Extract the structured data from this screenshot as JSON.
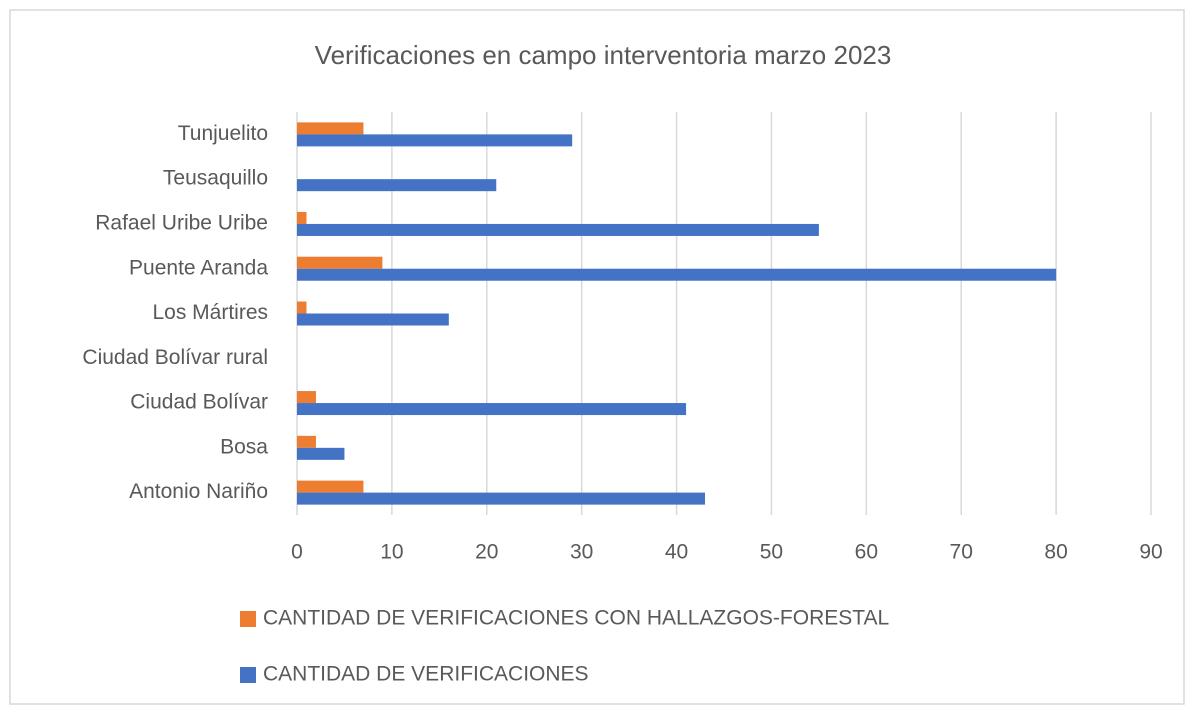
{
  "chart_data": {
    "type": "barh",
    "title": "Verificaciones en campo interventoria marzo 2023",
    "categories": [
      "Antonio Nariño",
      "Bosa",
      "Ciudad Bolívar",
      "Ciudad Bolívar rural",
      "Los Mártires",
      "Puente Aranda",
      "Rafael Uribe Uribe",
      "Teusaquillo",
      "Tunjuelito"
    ],
    "series": [
      {
        "name": "CANTIDAD DE VERIFICACIONES CON HALLAZGOS-FORESTAL",
        "color": "#ed7d31",
        "values": [
          7,
          2,
          2,
          0,
          1,
          9,
          1,
          0,
          7
        ]
      },
      {
        "name": "CANTIDAD DE VERIFICACIONES",
        "color": "#4472c4",
        "values": [
          43,
          5,
          41,
          0,
          16,
          80,
          55,
          21,
          29
        ]
      }
    ],
    "xlim": [
      0,
      90
    ],
    "xticks": [
      0,
      10,
      20,
      30,
      40,
      50,
      60,
      70,
      80,
      90
    ],
    "grid": true,
    "legend": "bottom"
  }
}
